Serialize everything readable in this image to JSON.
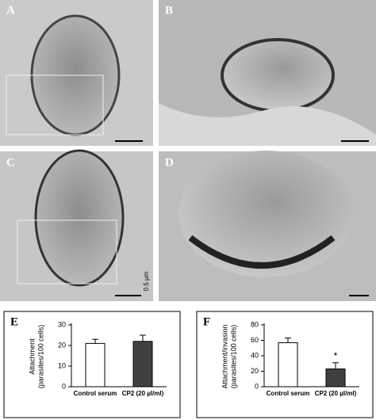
{
  "panels": [
    {
      "label": "A"
    },
    {
      "label": "B"
    },
    {
      "label": "C",
      "scale_bar": "0.5 µm"
    },
    {
      "label": "D"
    }
  ],
  "chart_data": [
    {
      "type": "bar",
      "panel_label": "E",
      "ylabel": [
        "Attachment",
        "(parasites/100 cells)"
      ],
      "categories": [
        "Control serum",
        "CP2 (20 µl/ml)"
      ],
      "values": [
        21,
        22
      ],
      "errors": [
        2,
        3
      ],
      "colors": [
        "#ffffff",
        "#404040"
      ],
      "ylim": [
        0,
        30
      ],
      "yticks": [
        0,
        10,
        20,
        30
      ]
    },
    {
      "type": "bar",
      "panel_label": "F",
      "ylabel": [
        "Attachment/invasion",
        "(parasites/100 cells)"
      ],
      "categories": [
        "Control serum",
        "CP2 (20 µl/ml)"
      ],
      "values": [
        57,
        23
      ],
      "errors": [
        6,
        8
      ],
      "colors": [
        "#ffffff",
        "#404040"
      ],
      "ylim": [
        0,
        80
      ],
      "yticks": [
        0,
        20,
        40,
        60,
        80
      ],
      "annotation": {
        "text": "*",
        "category": 1
      }
    }
  ]
}
